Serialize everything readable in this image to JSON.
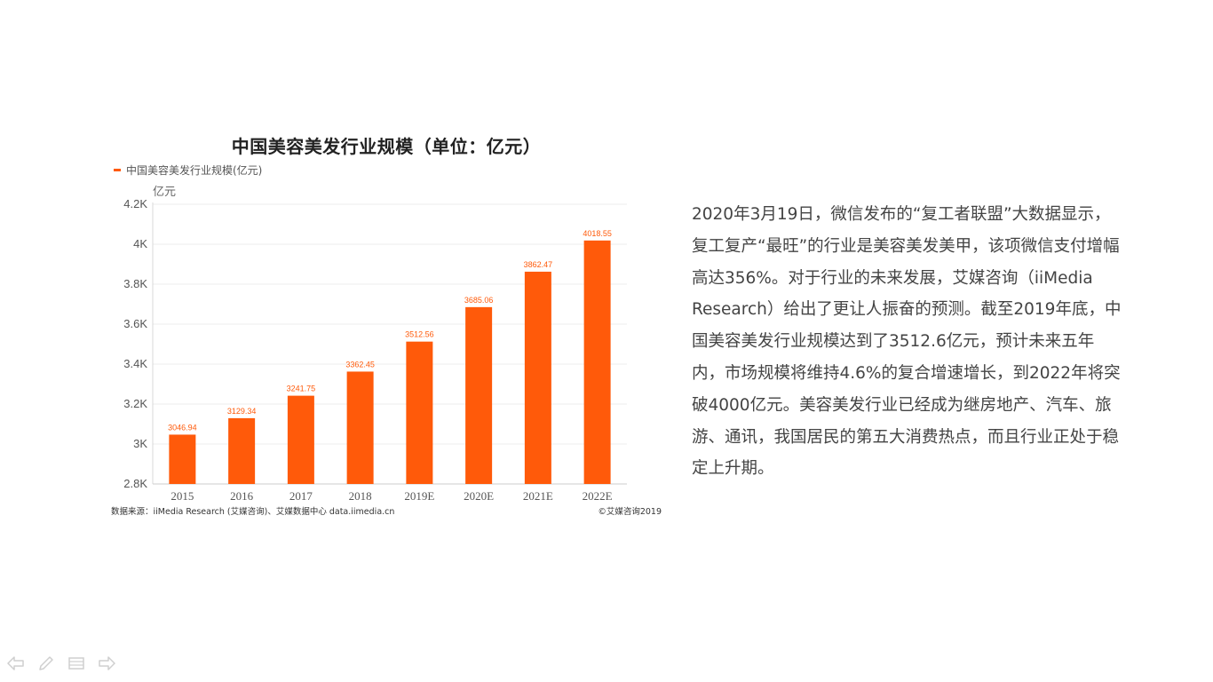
{
  "chart_data": {
    "type": "bar",
    "title": "中国美容美发行业规模（单位：亿元）",
    "legend": {
      "label": "中国美容美发行业规模(亿元)",
      "placement": "top-left"
    },
    "ylabel": "亿元",
    "xlabel": "",
    "categories": [
      "2015",
      "2016",
      "2017",
      "2018",
      "2019E",
      "2020E",
      "2021E",
      "2022E"
    ],
    "series": [
      {
        "name": "中国美容美发行业规模(亿元)",
        "values": [
          3046.94,
          3129.34,
          3241.75,
          3362.45,
          3512.56,
          3685.06,
          3862.47,
          4018.55
        ]
      }
    ],
    "data_labels": [
      "3046.94",
      "3129.34",
      "3241.75",
      "3362.45",
      "3512.56",
      "3685.06",
      "3862.47",
      "4018.55"
    ],
    "ylim": [
      2800,
      4200
    ],
    "yticks": [
      2800,
      3000,
      3200,
      3400,
      3600,
      3800,
      4000,
      4200
    ],
    "ytick_labels": [
      "2.8K",
      "3K",
      "3.2K",
      "3.4K",
      "3.6K",
      "3.8K",
      "4K",
      "4.2K"
    ],
    "grid": true,
    "bar_color": "#ff5a0a",
    "source": "数据来源：iiMedia Research (艾媒咨询)、艾媒数据中心 data.iimedia.cn",
    "copyright": "©艾媒咨询2019"
  },
  "paragraph": "2020年3月19日，微信发布的“复工者联盟”大数据显示，复工复产“最旺”的行业是美容美发美甲，该项微信支付增幅高达356%。对于行业的未来发展，艾媒咨询（iiMedia Research）给出了更让人振奋的预测。截至2019年底，中国美容美发行业规模达到了3512.6亿元，预计未来五年内，市场规模将维持4.6%的复合增速增长，到2022年将突破4000亿元。美容美发行业已经成为继房地产、汽车、旅游、通讯，我国居民的第五大消费热点，而且行业正处于稳定上升期。",
  "nav": {
    "icons": [
      "arrow-left-icon",
      "pen-icon",
      "menu-icon",
      "arrow-right-icon"
    ],
    "icon_color": "#d0d0d0"
  }
}
